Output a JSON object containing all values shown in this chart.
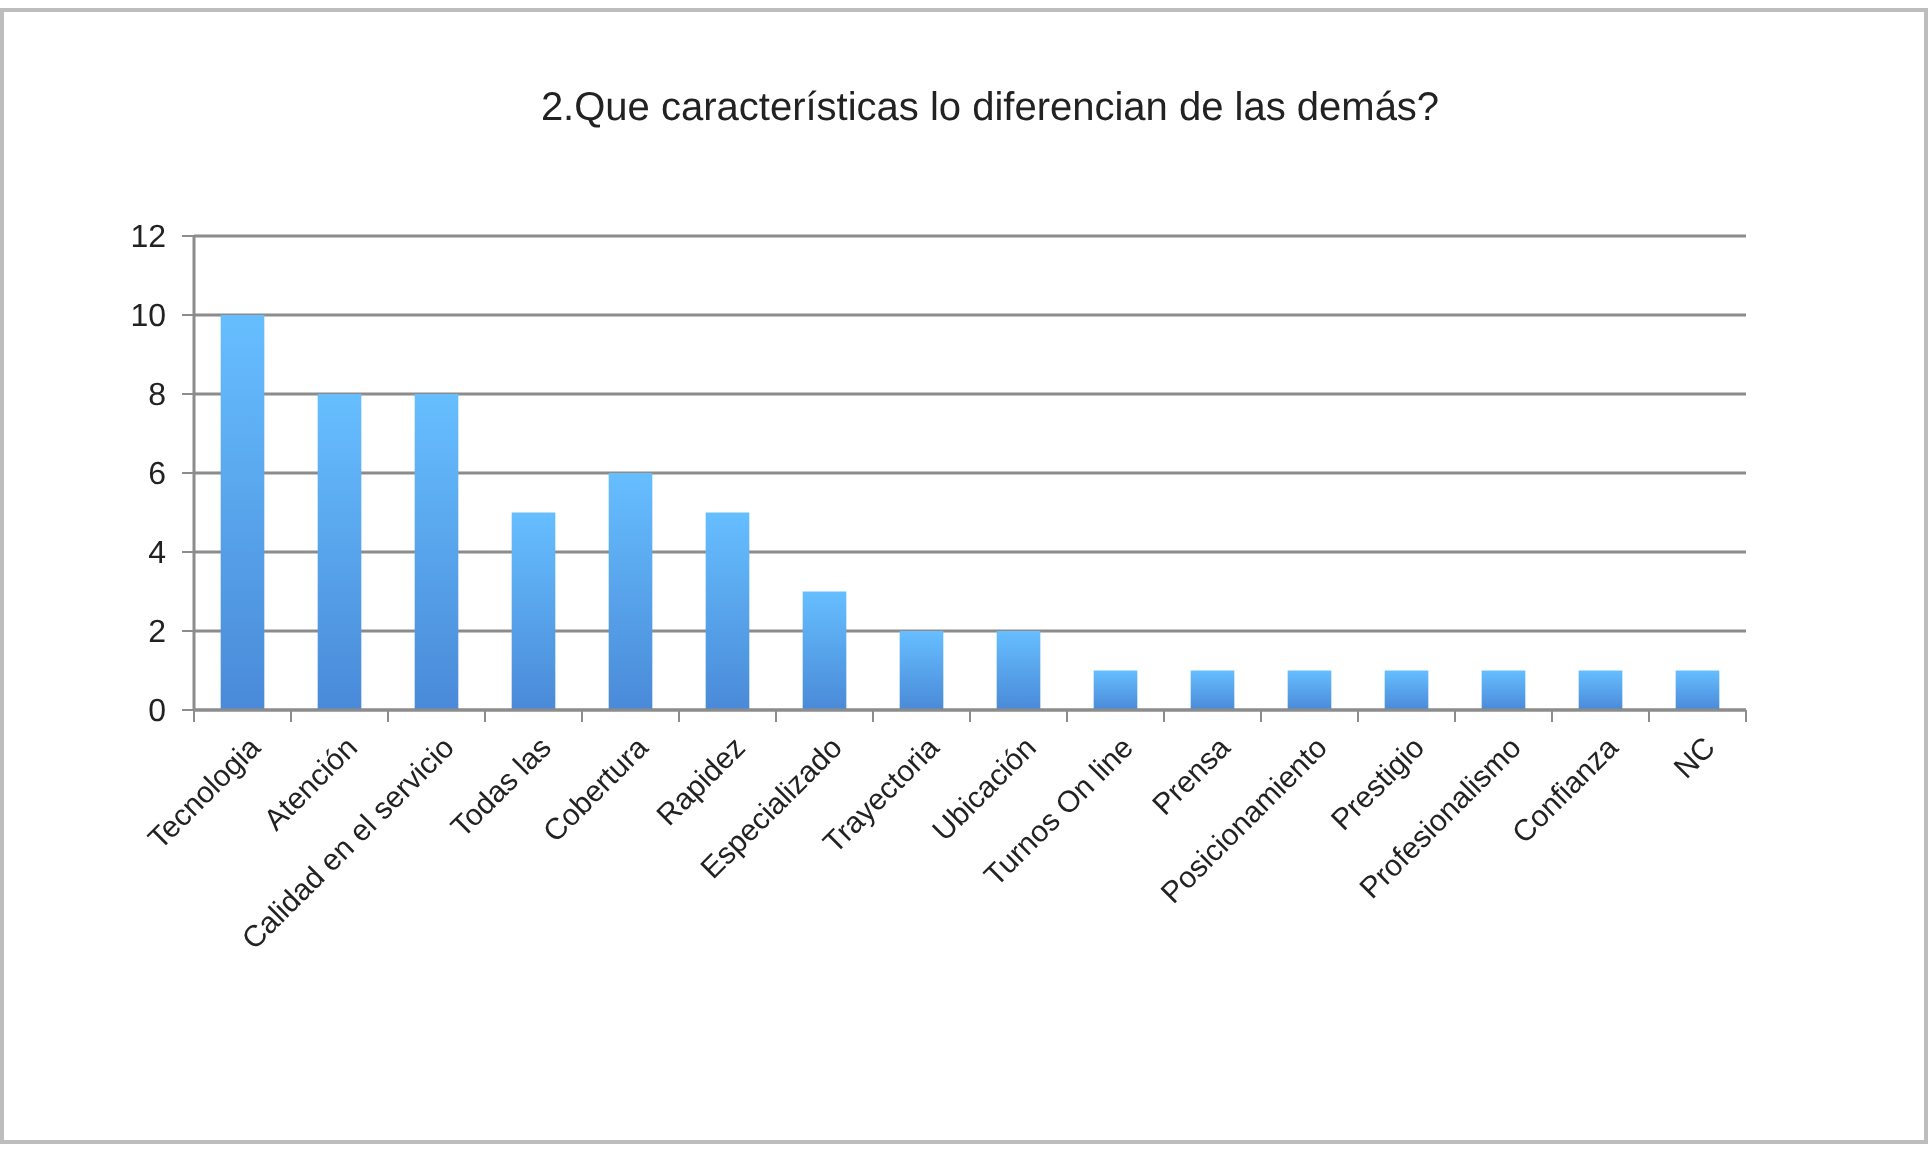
{
  "chart_data": {
    "type": "bar",
    "title": "2.Que características lo diferencian de las demás?",
    "categories": [
      "Tecnologia",
      "Atención",
      "Calidad en el servicio",
      "Todas las",
      "Cobertura",
      "Rapidez",
      "Especializado",
      "Trayectoria",
      "Ubicación",
      "Turnos On line",
      "Prensa",
      "Posicionamiento",
      "Prestigio",
      "Profesionalismo",
      "Confianza",
      "NC"
    ],
    "values": [
      10,
      8,
      8,
      5,
      6,
      5,
      3,
      2,
      2,
      1,
      1,
      1,
      1,
      1,
      1,
      1
    ],
    "color": "#4a8ad8",
    "ylim": [
      0,
      12
    ],
    "yticks": [
      0,
      2,
      4,
      6,
      8,
      10,
      12
    ],
    "grid": "y"
  }
}
